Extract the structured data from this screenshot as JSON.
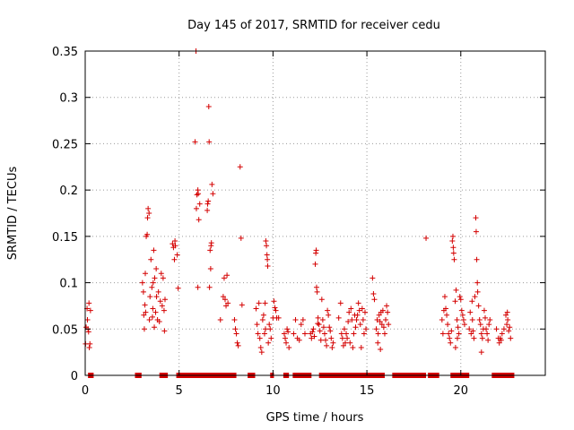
{
  "colors": {
    "points": "#d40000",
    "grid": "#9a9a9a",
    "axis": "#000000"
  },
  "chart_data": {
    "type": "scatter",
    "title": "Day 145 of 2017, SRMTID for receiver cedu",
    "xlabel": "GPS time / hours",
    "ylabel": "SRMTID / TECUs",
    "xlim": [
      0,
      24.5
    ],
    "ylim": [
      0,
      0.35
    ],
    "grid": true,
    "legend": "none",
    "x_ticks": [
      0,
      5,
      10,
      15,
      20
    ],
    "x_tick_labels": [
      "0",
      "5",
      "10",
      "15",
      "20"
    ],
    "y_ticks": [
      0,
      0.05,
      0.1,
      0.15,
      0.2,
      0.25,
      0.3,
      0.35
    ],
    "y_tick_labels": [
      "0",
      "0.05",
      "0.1",
      "0.15",
      "0.2",
      "0.25",
      "0.3",
      "0.35"
    ],
    "series": [
      {
        "name": "SRMTID",
        "marker": "+",
        "points": [
          [
            0.02,
            0.034
          ],
          [
            0.05,
            0.052
          ],
          [
            0.1,
            0.072
          ],
          [
            0.12,
            0.06
          ],
          [
            0.15,
            0.05
          ],
          [
            0.18,
            0.047
          ],
          [
            0.2,
            0.078
          ],
          [
            0.25,
            0.034
          ],
          [
            0.28,
            0.07
          ],
          [
            0.22,
            0.03
          ],
          [
            3.05,
            0.1
          ],
          [
            3.1,
            0.09
          ],
          [
            3.12,
            0.065
          ],
          [
            3.18,
            0.076
          ],
          [
            3.2,
            0.11
          ],
          [
            3.25,
            0.15
          ],
          [
            3.3,
            0.152
          ],
          [
            3.32,
            0.17
          ],
          [
            3.35,
            0.18
          ],
          [
            3.4,
            0.175
          ],
          [
            3.42,
            0.06
          ],
          [
            3.45,
            0.085
          ],
          [
            3.5,
            0.125
          ],
          [
            3.55,
            0.095
          ],
          [
            3.6,
            0.072
          ],
          [
            3.62,
            0.1
          ],
          [
            3.65,
            0.135
          ],
          [
            3.7,
            0.105
          ],
          [
            3.75,
            0.068
          ],
          [
            3.8,
            0.085
          ],
          [
            3.85,
            0.06
          ],
          [
            3.9,
            0.09
          ],
          [
            3.95,
            0.058
          ],
          [
            4.0,
            0.08
          ],
          [
            4.05,
            0.11
          ],
          [
            4.1,
            0.075
          ],
          [
            4.15,
            0.105
          ],
          [
            4.2,
            0.07
          ],
          [
            4.22,
            0.048
          ],
          [
            4.25,
            0.082
          ],
          [
            3.15,
            0.05
          ],
          [
            3.22,
            0.068
          ],
          [
            3.58,
            0.063
          ],
          [
            3.68,
            0.052
          ],
          [
            3.78,
            0.115
          ],
          [
            4.65,
            0.142
          ],
          [
            4.7,
            0.138
          ],
          [
            4.75,
            0.125
          ],
          [
            4.78,
            0.145
          ],
          [
            4.8,
            0.14
          ],
          [
            4.9,
            0.13
          ],
          [
            4.95,
            0.094
          ],
          [
            5.85,
            0.252
          ],
          [
            5.9,
            0.35
          ],
          [
            5.92,
            0.18
          ],
          [
            5.95,
            0.195
          ],
          [
            6.0,
            0.2
          ],
          [
            6.02,
            0.196
          ],
          [
            6.05,
            0.168
          ],
          [
            6.1,
            0.185
          ],
          [
            6.0,
            0.095
          ],
          [
            6.5,
            0.178
          ],
          [
            6.52,
            0.185
          ],
          [
            6.55,
            0.188
          ],
          [
            6.58,
            0.29
          ],
          [
            6.6,
            0.252
          ],
          [
            6.62,
            0.095
          ],
          [
            6.65,
            0.135
          ],
          [
            6.68,
            0.115
          ],
          [
            6.7,
            0.14
          ],
          [
            6.72,
            0.143
          ],
          [
            6.75,
            0.206
          ],
          [
            6.8,
            0.196
          ],
          [
            7.2,
            0.06
          ],
          [
            7.35,
            0.085
          ],
          [
            7.4,
            0.105
          ],
          [
            7.45,
            0.082
          ],
          [
            7.5,
            0.075
          ],
          [
            7.55,
            0.108
          ],
          [
            7.6,
            0.078
          ],
          [
            7.95,
            0.06
          ],
          [
            8.0,
            0.05
          ],
          [
            8.05,
            0.045
          ],
          [
            8.1,
            0.035
          ],
          [
            8.15,
            0.032
          ],
          [
            8.25,
            0.225
          ],
          [
            8.3,
            0.148
          ],
          [
            8.35,
            0.076
          ],
          [
            9.1,
            0.072
          ],
          [
            9.15,
            0.055
          ],
          [
            9.2,
            0.045
          ],
          [
            9.3,
            0.04
          ],
          [
            9.35,
            0.03
          ],
          [
            9.4,
            0.025
          ],
          [
            9.45,
            0.06
          ],
          [
            9.5,
            0.065
          ],
          [
            9.55,
            0.045
          ],
          [
            9.6,
            0.05
          ],
          [
            9.62,
            0.145
          ],
          [
            9.65,
            0.14
          ],
          [
            9.68,
            0.13
          ],
          [
            9.7,
            0.125
          ],
          [
            9.72,
            0.118
          ],
          [
            9.75,
            0.035
          ],
          [
            9.8,
            0.055
          ],
          [
            9.85,
            0.05
          ],
          [
            9.9,
            0.04
          ],
          [
            10.0,
            0.062
          ],
          [
            10.05,
            0.08
          ],
          [
            10.1,
            0.073
          ],
          [
            10.15,
            0.07
          ],
          [
            10.2,
            0.062
          ],
          [
            10.3,
            0.062
          ],
          [
            9.25,
            0.078
          ],
          [
            9.58,
            0.078
          ],
          [
            10.6,
            0.045
          ],
          [
            10.65,
            0.04
          ],
          [
            10.7,
            0.035
          ],
          [
            10.75,
            0.05
          ],
          [
            10.8,
            0.047
          ],
          [
            10.85,
            0.03
          ],
          [
            11.1,
            0.045
          ],
          [
            11.2,
            0.06
          ],
          [
            11.3,
            0.04
          ],
          [
            11.4,
            0.038
          ],
          [
            11.5,
            0.055
          ],
          [
            11.6,
            0.06
          ],
          [
            11.7,
            0.045
          ],
          [
            12.0,
            0.045
          ],
          [
            12.05,
            0.04
          ],
          [
            12.1,
            0.047
          ],
          [
            12.15,
            0.05
          ],
          [
            12.2,
            0.042
          ],
          [
            12.25,
            0.12
          ],
          [
            12.28,
            0.132
          ],
          [
            12.3,
            0.135
          ],
          [
            12.32,
            0.095
          ],
          [
            12.35,
            0.09
          ],
          [
            12.38,
            0.056
          ],
          [
            12.4,
            0.062
          ],
          [
            12.45,
            0.055
          ],
          [
            12.5,
            0.048
          ],
          [
            12.55,
            0.038
          ],
          [
            12.6,
            0.082
          ],
          [
            12.65,
            0.06
          ],
          [
            12.7,
            0.052
          ],
          [
            12.75,
            0.045
          ],
          [
            12.8,
            0.038
          ],
          [
            12.85,
            0.032
          ],
          [
            12.9,
            0.07
          ],
          [
            12.95,
            0.065
          ],
          [
            13.0,
            0.052
          ],
          [
            13.05,
            0.048
          ],
          [
            13.1,
            0.04
          ],
          [
            13.15,
            0.03
          ],
          [
            13.2,
            0.035
          ],
          [
            13.5,
            0.062
          ],
          [
            13.6,
            0.078
          ],
          [
            13.65,
            0.045
          ],
          [
            13.7,
            0.04
          ],
          [
            13.75,
            0.032
          ],
          [
            13.8,
            0.05
          ],
          [
            13.85,
            0.035
          ],
          [
            13.9,
            0.045
          ],
          [
            13.95,
            0.04
          ],
          [
            14.0,
            0.058
          ],
          [
            14.05,
            0.068
          ],
          [
            14.1,
            0.035
          ],
          [
            14.15,
            0.072
          ],
          [
            14.2,
            0.06
          ],
          [
            14.25,
            0.03
          ],
          [
            14.3,
            0.045
          ],
          [
            14.35,
            0.065
          ],
          [
            14.4,
            0.052
          ],
          [
            14.45,
            0.06
          ],
          [
            14.5,
            0.065
          ],
          [
            14.55,
            0.078
          ],
          [
            14.6,
            0.07
          ],
          [
            14.65,
            0.055
          ],
          [
            14.7,
            0.03
          ],
          [
            14.75,
            0.072
          ],
          [
            14.8,
            0.06
          ],
          [
            14.85,
            0.045
          ],
          [
            14.9,
            0.068
          ],
          [
            14.95,
            0.05
          ],
          [
            15.3,
            0.105
          ],
          [
            15.35,
            0.088
          ],
          [
            15.4,
            0.082
          ],
          [
            15.5,
            0.05
          ],
          [
            15.55,
            0.06
          ],
          [
            15.6,
            0.045
          ],
          [
            15.65,
            0.065
          ],
          [
            15.7,
            0.058
          ],
          [
            15.75,
            0.068
          ],
          [
            15.8,
            0.055
          ],
          [
            15.85,
            0.07
          ],
          [
            15.9,
            0.052
          ],
          [
            15.95,
            0.045
          ],
          [
            16.0,
            0.06
          ],
          [
            16.05,
            0.075
          ],
          [
            16.1,
            0.068
          ],
          [
            16.15,
            0.055
          ],
          [
            15.58,
            0.035
          ],
          [
            15.72,
            0.028
          ],
          [
            18.15,
            0.148
          ],
          [
            19.0,
            0.06
          ],
          [
            19.05,
            0.045
          ],
          [
            19.1,
            0.07
          ],
          [
            19.15,
            0.085
          ],
          [
            19.2,
            0.072
          ],
          [
            19.25,
            0.065
          ],
          [
            19.3,
            0.055
          ],
          [
            19.35,
            0.045
          ],
          [
            19.4,
            0.04
          ],
          [
            19.45,
            0.035
          ],
          [
            19.5,
            0.048
          ],
          [
            19.55,
            0.145
          ],
          [
            19.58,
            0.15
          ],
          [
            19.6,
            0.138
          ],
          [
            19.62,
            0.132
          ],
          [
            19.65,
            0.125
          ],
          [
            19.7,
            0.08
          ],
          [
            19.75,
            0.092
          ],
          [
            19.8,
            0.06
          ],
          [
            19.85,
            0.052
          ],
          [
            19.9,
            0.045
          ],
          [
            19.95,
            0.085
          ],
          [
            20.0,
            0.082
          ],
          [
            20.05,
            0.07
          ],
          [
            20.1,
            0.065
          ],
          [
            20.15,
            0.06
          ],
          [
            20.2,
            0.055
          ],
          [
            19.72,
            0.03
          ],
          [
            19.82,
            0.04
          ],
          [
            20.45,
            0.05
          ],
          [
            20.5,
            0.068
          ],
          [
            20.55,
            0.045
          ],
          [
            20.6,
            0.08
          ],
          [
            20.62,
            0.06
          ],
          [
            20.65,
            0.048
          ],
          [
            20.7,
            0.04
          ],
          [
            20.75,
            0.085
          ],
          [
            20.8,
            0.17
          ],
          [
            20.82,
            0.155
          ],
          [
            20.85,
            0.125
          ],
          [
            20.88,
            0.1
          ],
          [
            20.9,
            0.09
          ],
          [
            20.95,
            0.075
          ],
          [
            21.0,
            0.06
          ],
          [
            21.05,
            0.055
          ],
          [
            21.1,
            0.045
          ],
          [
            21.15,
            0.04
          ],
          [
            21.2,
            0.05
          ],
          [
            21.25,
            0.07
          ],
          [
            21.3,
            0.062
          ],
          [
            21.35,
            0.05
          ],
          [
            21.4,
            0.045
          ],
          [
            21.45,
            0.038
          ],
          [
            21.5,
            0.055
          ],
          [
            21.55,
            0.06
          ],
          [
            21.1,
            0.025
          ],
          [
            21.9,
            0.05
          ],
          [
            22.0,
            0.04
          ],
          [
            22.05,
            0.035
          ],
          [
            22.1,
            0.04
          ],
          [
            22.15,
            0.038
          ],
          [
            22.2,
            0.045
          ],
          [
            22.3,
            0.05
          ],
          [
            22.4,
            0.065
          ],
          [
            22.45,
            0.055
          ],
          [
            22.5,
            0.06
          ],
          [
            22.55,
            0.048
          ],
          [
            22.6,
            0.052
          ],
          [
            22.65,
            0.04
          ],
          [
            22.48,
            0.068
          ]
        ],
        "zero_bands": [
          [
            0.15,
            0.45
          ],
          [
            2.65,
            3.0
          ],
          [
            3.95,
            4.4
          ],
          [
            4.85,
            8.05
          ],
          [
            8.65,
            9.05
          ],
          [
            9.85,
            10.05
          ],
          [
            10.55,
            10.85
          ],
          [
            11.05,
            12.05
          ],
          [
            12.45,
            15.95
          ],
          [
            16.35,
            18.15
          ],
          [
            18.25,
            18.85
          ],
          [
            19.45,
            20.45
          ],
          [
            21.65,
            22.85
          ]
        ]
      }
    ]
  }
}
